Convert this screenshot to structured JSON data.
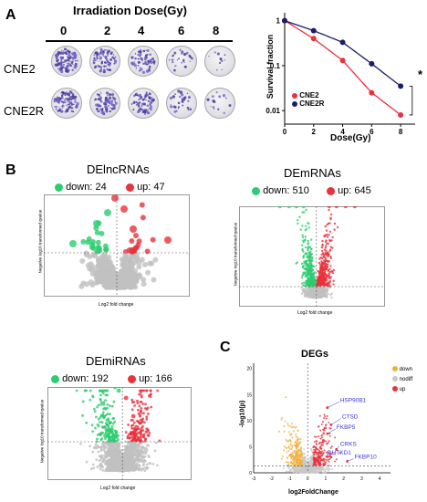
{
  "panelA": {
    "letter": "A",
    "title": "Irradiation Dose(Gy)",
    "doses": [
      "0",
      "2",
      "4",
      "6",
      "8"
    ],
    "row_labels": [
      "CNE2",
      "CNE2R"
    ],
    "colony_density": {
      "CNE2": [
        0.95,
        0.75,
        0.55,
        0.25,
        0.08
      ],
      "CNE2R": [
        0.85,
        0.7,
        0.6,
        0.3,
        0.12
      ]
    }
  },
  "survival": {
    "ylabel": "Survival fraction",
    "xlabel": "Dose(Gy)",
    "yticks": [
      "1",
      "0.1",
      "0.01"
    ],
    "xticks": [
      "0",
      "2",
      "4",
      "6",
      "8"
    ],
    "legend": [
      "CNE2",
      "CNE2R"
    ],
    "significance": "*",
    "colors": {
      "CNE2": "#e8323c",
      "CNE2R": "#1b1c6b"
    },
    "chart_data": {
      "type": "line",
      "x": [
        0,
        2,
        4,
        6,
        8
      ],
      "series": [
        {
          "name": "CNE2",
          "values": [
            1.0,
            0.4,
            0.13,
            0.025,
            0.008
          ]
        },
        {
          "name": "CNE2R",
          "values": [
            1.0,
            0.6,
            0.33,
            0.11,
            0.035
          ]
        }
      ],
      "xlabel": "Dose(Gy)",
      "ylabel": "Survival fraction",
      "xlim": [
        0,
        9
      ],
      "ylim": [
        0.005,
        1.5
      ],
      "yscale": "log",
      "legend_position": "bottom-left"
    }
  },
  "panelB": {
    "letter": "B",
    "plots": [
      {
        "title": "DElncRNAs",
        "down": "down: 24",
        "up": "up: 47",
        "xlabel": "Log2 fold change",
        "ylabel": "Negative log10 transformed qvalue"
      },
      {
        "title": "DEmRNAs",
        "down": "down: 510",
        "up": "up: 645",
        "xlabel": "Log2 fold change",
        "ylabel": "Negative log10 transformed qvalue"
      },
      {
        "title": "DEmiRNAs",
        "down": "down: 192",
        "up": "up: 166",
        "xlabel": "Log2 fold change",
        "ylabel": "Negative log10 transformed qvalue"
      }
    ],
    "colors": {
      "down": "#2ecc71",
      "up": "#e8323c",
      "nodiff": "#c0c0c0"
    }
  },
  "panelC": {
    "letter": "C",
    "title": "DEGs",
    "xlabel": "log2FoldChange",
    "ylabel": "-log10(p)",
    "xticks": [
      "-3",
      "-2",
      "-1",
      "0",
      "1",
      "2",
      "3",
      "4"
    ],
    "yticks": [
      "0",
      "5",
      "10",
      "15",
      "20"
    ],
    "legend": [
      "down",
      "nodiff",
      "up"
    ],
    "colors": {
      "down": "#f0b040",
      "nodiff": "#c8c8c8",
      "up": "#e8323c",
      "label": "#3a3ad0"
    },
    "genes": [
      "HSP90B1",
      "CTSD",
      "FKBP5",
      "CRKS",
      "DHTKD1",
      "FKBP10"
    ]
  }
}
